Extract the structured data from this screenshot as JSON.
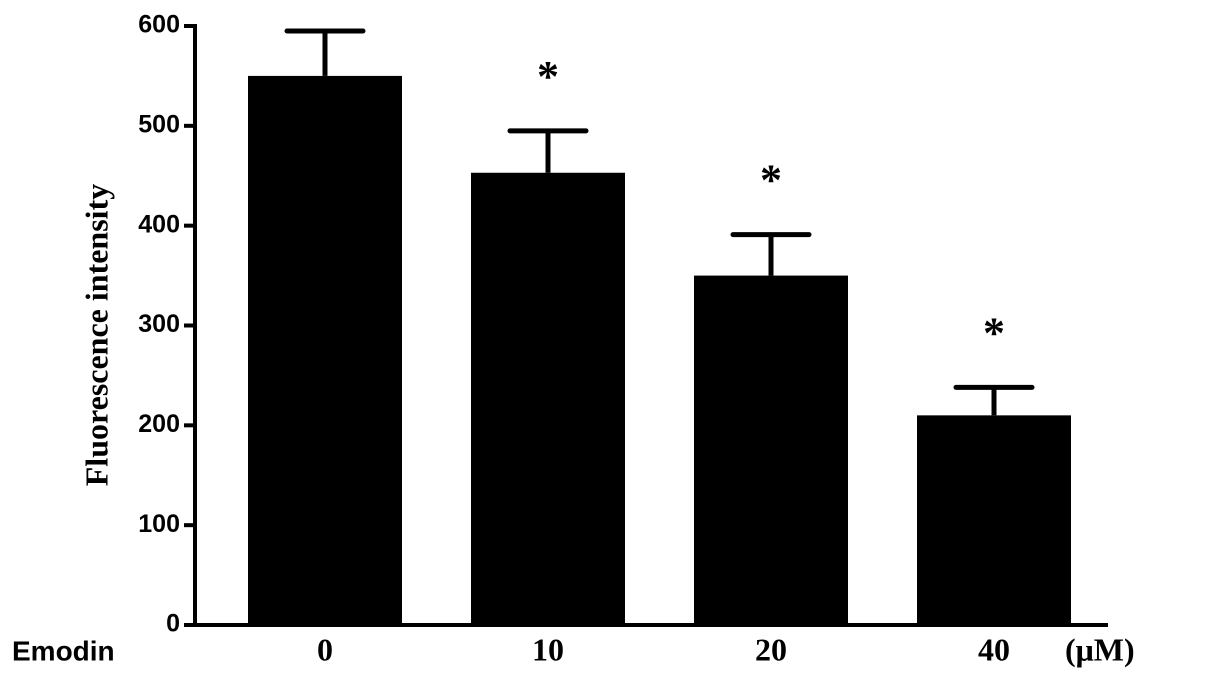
{
  "chart_data": {
    "type": "bar",
    "ylabel": "Fluorescence intensity",
    "xlabel": "Emodin",
    "unit": "(μM)",
    "categories": [
      "0",
      "10",
      "20",
      "40"
    ],
    "values": [
      550,
      453,
      350,
      210
    ],
    "errors": [
      45,
      42,
      41,
      28
    ],
    "annotations": [
      null,
      "*",
      "*",
      "*"
    ],
    "color": "#000000",
    "ylim": [
      0,
      600
    ],
    "yticks": [
      0,
      100,
      200,
      300,
      400,
      500,
      600
    ]
  }
}
